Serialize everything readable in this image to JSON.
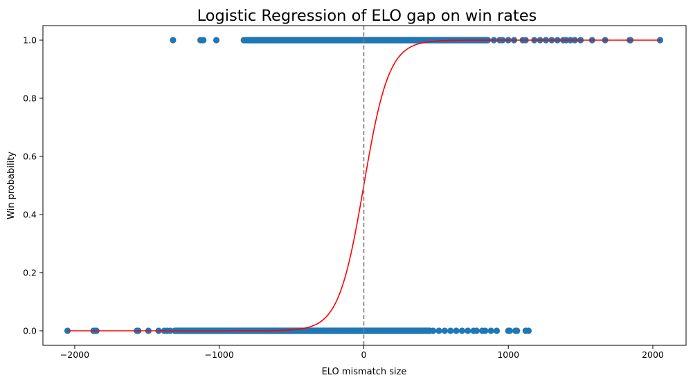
{
  "chart_data": {
    "type": "scatter",
    "title": "Logistic Regression of ELO gap on win rates",
    "xlabel": "ELO mismatch size",
    "ylabel": "Win probability",
    "xlim": [
      -2220,
      2230
    ],
    "ylim": [
      -0.05,
      1.05
    ],
    "x_ticks": [
      -2000,
      -1000,
      0,
      1000,
      2000
    ],
    "x_tick_labels": [
      "−2000",
      "−1000",
      "0",
      "1000",
      "2000"
    ],
    "y_ticks": [
      0.0,
      0.2,
      0.4,
      0.6,
      0.8,
      1.0
    ],
    "y_tick_labels": [
      "0.0",
      "0.2",
      "0.4",
      "0.6",
      "0.8",
      "1.0"
    ],
    "grid": false,
    "reference_line": {
      "x": 0,
      "style": "dashed",
      "color": "#7f7f7f"
    },
    "colors": {
      "points": "#1f77b4",
      "curve": "#ff0000",
      "reference": "#7f7f7f"
    },
    "series": [
      {
        "kind": "points",
        "outcome": 1,
        "dense_range": [
          -840,
          880
        ],
        "x": [
          -1320,
          -1130,
          -1110,
          -1020,
          -830,
          -800,
          -760,
          -720,
          -700,
          -680,
          -650,
          -620,
          -600,
          900,
          940,
          960,
          1000,
          1040,
          1100,
          1120,
          1180,
          1220,
          1260,
          1300,
          1340,
          1380,
          1400,
          1430,
          1460,
          1500,
          1580,
          1670,
          1840,
          1845,
          2050
        ]
      },
      {
        "kind": "points",
        "outcome": 0,
        "dense_range": [
          -1330,
          480
        ],
        "x": [
          -2050,
          -1870,
          -1860,
          -1850,
          -1570,
          -1560,
          -1490,
          -1420,
          -1380,
          -1360,
          -1340,
          480,
          520,
          560,
          600,
          640,
          680,
          720,
          760,
          780,
          820,
          840,
          880,
          920,
          1000,
          1010,
          1050,
          1060,
          1120,
          1140
        ]
      },
      {
        "kind": "curve",
        "function": "logistic",
        "midpoint": 0,
        "slope": 0.0115,
        "x_range": [
          -2050,
          2050
        ]
      }
    ]
  }
}
